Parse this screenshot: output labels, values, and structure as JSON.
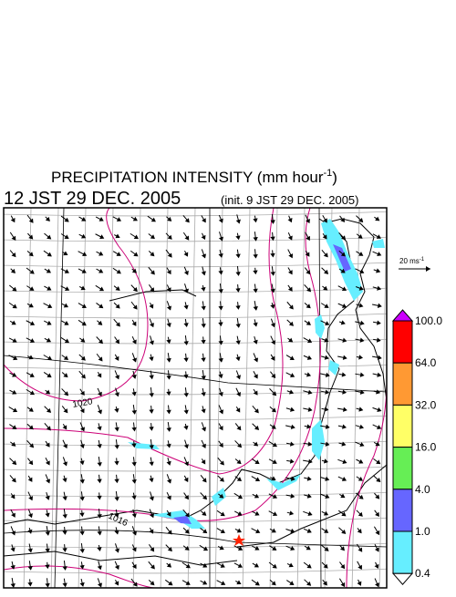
{
  "header": {
    "title": {
      "main": "PRECIPITATION INTENSITY (mm hour",
      "superscript": "-1",
      "close": ")"
    },
    "valid_time": "12 JST 29 DEC. 2005",
    "init_time": "(init. 9 JST 29 DEC. 2005)"
  },
  "wind_scale": {
    "label": "20 ms",
    "superscript": "-1"
  },
  "map": {
    "contour_labels": [
      "1020",
      "1016"
    ]
  },
  "colorbar": {
    "labels": [
      "100.0",
      "64.0",
      "32.0",
      "16.0",
      "4.0",
      "1.0",
      "0.4"
    ],
    "colors": [
      "#cc00ff",
      "#ff0000",
      "#ff9933",
      "#ffff66",
      "#66ee55",
      "#6666ff",
      "#66eeff",
      "#ffffff"
    ]
  }
}
